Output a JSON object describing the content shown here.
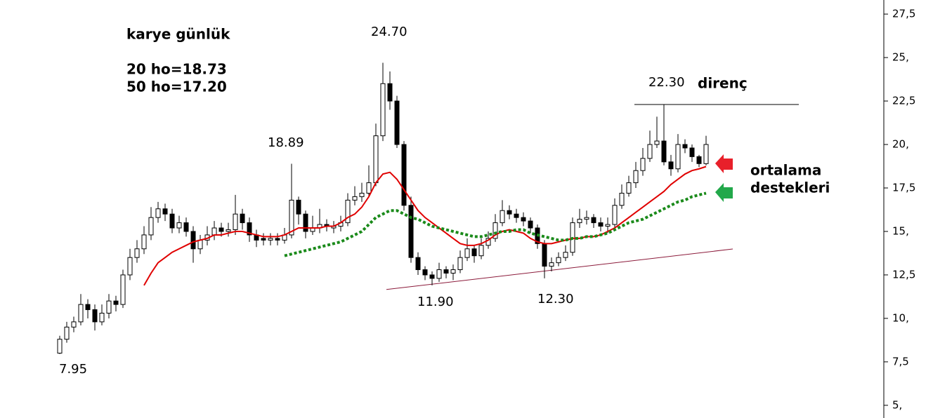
{
  "chart_data": {
    "type": "candlestick",
    "title": "karye günlük",
    "open": [
      8.0,
      8.8,
      9.5,
      9.8,
      10.8,
      10.5,
      9.8,
      10.3,
      11.0,
      10.8,
      12.5,
      13.5,
      14.0,
      14.8,
      15.8,
      16.3,
      16.0,
      15.2,
      15.5,
      15.0,
      14.0,
      14.5,
      14.8,
      15.2,
      15.0,
      15.1,
      16.0,
      15.5,
      14.8,
      14.6,
      14.5,
      14.6,
      14.5,
      14.8,
      16.8,
      16.0,
      15.0,
      15.2,
      15.4,
      15.2,
      15.3,
      15.5,
      16.8,
      17.0,
      17.2,
      17.8,
      20.5,
      23.5,
      22.5,
      20.0,
      16.5,
      13.5,
      12.8,
      12.5,
      12.3,
      12.8,
      12.6,
      12.8,
      13.5,
      14.0,
      13.6,
      14.2,
      14.6,
      15.5,
      16.2,
      16.0,
      15.8,
      15.6,
      15.2,
      14.3,
      13.0,
      13.2,
      13.5,
      13.8,
      15.5,
      15.7,
      15.8,
      15.5,
      15.3,
      15.4,
      16.5,
      17.2,
      17.8,
      18.5,
      19.2,
      20.0,
      20.2,
      19.0,
      18.6,
      20.0,
      19.8,
      19.3,
      18.9
    ],
    "high": [
      9.0,
      9.8,
      10.1,
      11.4,
      11.1,
      10.8,
      10.8,
      11.4,
      11.3,
      12.8,
      14.0,
      14.5,
      15.3,
      16.4,
      16.7,
      16.6,
      16.3,
      15.9,
      15.8,
      15.3,
      14.8,
      15.3,
      15.6,
      15.5,
      15.5,
      17.1,
      16.3,
      15.8,
      15.1,
      14.9,
      14.9,
      14.9,
      15.2,
      18.89,
      17.0,
      16.2,
      15.9,
      16.3,
      15.7,
      15.6,
      15.9,
      17.2,
      17.6,
      17.8,
      18.8,
      21.2,
      24.7,
      24.2,
      22.8,
      20.2,
      17.0,
      13.8,
      13.0,
      12.7,
      13.2,
      13.0,
      13.1,
      13.9,
      14.6,
      14.2,
      14.6,
      15.0,
      16.0,
      16.8,
      16.5,
      16.3,
      16.1,
      15.8,
      15.4,
      14.5,
      13.5,
      13.8,
      14.2,
      15.8,
      16.3,
      16.2,
      16.0,
      15.8,
      15.8,
      16.9,
      17.7,
      18.2,
      19.0,
      19.8,
      20.8,
      21.6,
      22.3,
      19.4,
      20.6,
      20.3,
      20.0,
      19.4,
      20.5
    ],
    "low": [
      7.95,
      8.6,
      9.2,
      9.6,
      10.0,
      9.3,
      9.6,
      10.0,
      10.4,
      10.6,
      12.2,
      13.2,
      13.7,
      14.5,
      15.5,
      15.6,
      14.9,
      14.9,
      14.7,
      13.2,
      13.7,
      14.2,
      14.5,
      14.7,
      14.7,
      14.8,
      15.1,
      14.4,
      14.1,
      14.2,
      14.2,
      14.2,
      14.3,
      14.6,
      15.4,
      14.6,
      14.8,
      14.9,
      15.0,
      14.9,
      15.0,
      15.3,
      16.5,
      16.7,
      17.0,
      17.6,
      20.2,
      22.0,
      19.8,
      16.2,
      13.2,
      12.5,
      12.2,
      11.9,
      12.1,
      12.3,
      12.2,
      12.6,
      13.3,
      13.2,
      13.4,
      14.0,
      14.4,
      15.3,
      15.7,
      15.5,
      15.3,
      14.9,
      14.0,
      12.3,
      12.7,
      13.0,
      13.3,
      13.6,
      15.2,
      15.4,
      15.2,
      15.0,
      14.9,
      15.2,
      16.3,
      17.0,
      17.5,
      18.2,
      19.0,
      19.8,
      18.8,
      18.2,
      18.4,
      19.5,
      19.0,
      18.7,
      18.8
    ],
    "close": [
      8.8,
      9.5,
      9.8,
      10.8,
      10.5,
      9.8,
      10.3,
      11.0,
      10.8,
      12.5,
      13.5,
      14.0,
      14.8,
      15.8,
      16.3,
      16.0,
      15.2,
      15.5,
      15.0,
      14.0,
      14.5,
      14.8,
      15.2,
      15.0,
      15.1,
      16.0,
      15.5,
      14.8,
      14.5,
      14.5,
      14.6,
      14.5,
      14.8,
      16.8,
      16.0,
      15.0,
      15.2,
      15.4,
      15.3,
      15.3,
      15.5,
      16.8,
      17.0,
      17.2,
      17.8,
      20.5,
      23.5,
      22.5,
      20.0,
      16.5,
      13.5,
      12.8,
      12.5,
      12.3,
      12.8,
      12.6,
      12.8,
      13.5,
      14.0,
      13.6,
      14.2,
      14.6,
      15.5,
      16.2,
      16.0,
      15.8,
      15.6,
      15.2,
      14.3,
      13.0,
      13.2,
      13.5,
      13.8,
      15.5,
      15.7,
      15.8,
      15.5,
      15.3,
      15.4,
      16.5,
      17.2,
      17.8,
      18.5,
      19.2,
      20.0,
      20.2,
      19.0,
      18.6,
      20.0,
      19.8,
      19.3,
      18.9,
      20.0
    ],
    "series": [
      {
        "name": "20 ho=18.73",
        "color": "#e00000",
        "style": "solid",
        "values": [
          null,
          null,
          null,
          null,
          null,
          null,
          null,
          null,
          null,
          null,
          null,
          null,
          11.9,
          12.6,
          13.2,
          13.5,
          13.8,
          14.0,
          14.2,
          14.4,
          14.5,
          14.6,
          14.8,
          14.8,
          14.9,
          15.0,
          15.0,
          14.9,
          14.8,
          14.7,
          14.7,
          14.7,
          14.8,
          15.0,
          15.2,
          15.2,
          15.2,
          15.2,
          15.3,
          15.3,
          15.5,
          15.8,
          16.0,
          16.4,
          17.0,
          17.8,
          18.3,
          18.4,
          18.0,
          17.4,
          16.8,
          16.2,
          15.8,
          15.5,
          15.2,
          14.9,
          14.6,
          14.3,
          14.2,
          14.2,
          14.3,
          14.5,
          14.8,
          15.0,
          15.1,
          15.0,
          14.9,
          14.6,
          14.4,
          14.3,
          14.3,
          14.4,
          14.5,
          14.6,
          14.6,
          14.7,
          14.7,
          14.8,
          15.0,
          15.2,
          15.5,
          15.8,
          16.1,
          16.4,
          16.7,
          17.0,
          17.3,
          17.7,
          18.0,
          18.3,
          18.5,
          18.6,
          18.73
        ]
      },
      {
        "name": "50 ho=17.20",
        "color": "#1a8a1a",
        "style": "dotted",
        "values": [
          null,
          null,
          null,
          null,
          null,
          null,
          null,
          null,
          null,
          null,
          null,
          null,
          null,
          null,
          null,
          null,
          null,
          null,
          null,
          null,
          null,
          null,
          null,
          null,
          null,
          null,
          null,
          null,
          null,
          null,
          null,
          null,
          13.6,
          13.7,
          13.8,
          13.9,
          14.0,
          14.1,
          14.2,
          14.3,
          14.4,
          14.6,
          14.8,
          15.0,
          15.4,
          15.8,
          16.0,
          16.2,
          16.2,
          16.0,
          15.8,
          15.7,
          15.5,
          15.3,
          15.2,
          15.1,
          15.0,
          14.9,
          14.8,
          14.7,
          14.7,
          14.8,
          14.9,
          15.0,
          15.0,
          15.1,
          15.1,
          14.9,
          14.8,
          14.7,
          14.6,
          14.5,
          14.5,
          14.6,
          14.6,
          14.7,
          14.7,
          14.8,
          14.9,
          15.1,
          15.3,
          15.5,
          15.6,
          15.7,
          15.9,
          16.1,
          16.3,
          16.5,
          16.7,
          16.8,
          17.0,
          17.1,
          17.2
        ]
      }
    ],
    "trendlines": [
      {
        "name": "support",
        "color": "#8b1a3a",
        "x": [
          46.5,
          95.8
        ],
        "values": [
          11.66,
          13.99
        ]
      },
      {
        "name": "direnç",
        "color": "#000000",
        "x": [
          81.8,
          105.2
        ],
        "values": [
          22.3,
          22.3
        ]
      }
    ],
    "annotations": [
      "24.70",
      "18.89",
      "22.30",
      "11.90",
      "12.30",
      "7.95"
    ],
    "note_lines": [
      "ortalama",
      "destekleri"
    ],
    "ylim": [
      4.27,
      28.31
    ],
    "yticks": [
      {
        "value": 27.5,
        "label": "27,5"
      },
      {
        "value": 25,
        "label": "25,"
      },
      {
        "value": 22.5,
        "label": "22,5"
      },
      {
        "value": 20,
        "label": "20,"
      },
      {
        "value": 17.5,
        "label": "17,5"
      },
      {
        "value": 15,
        "label": "15,"
      },
      {
        "value": 12.5,
        "label": "12,5"
      },
      {
        "value": 10,
        "label": "10,"
      },
      {
        "value": 7.5,
        "label": "7,5"
      },
      {
        "value": 5,
        "label": "5,"
      }
    ]
  }
}
